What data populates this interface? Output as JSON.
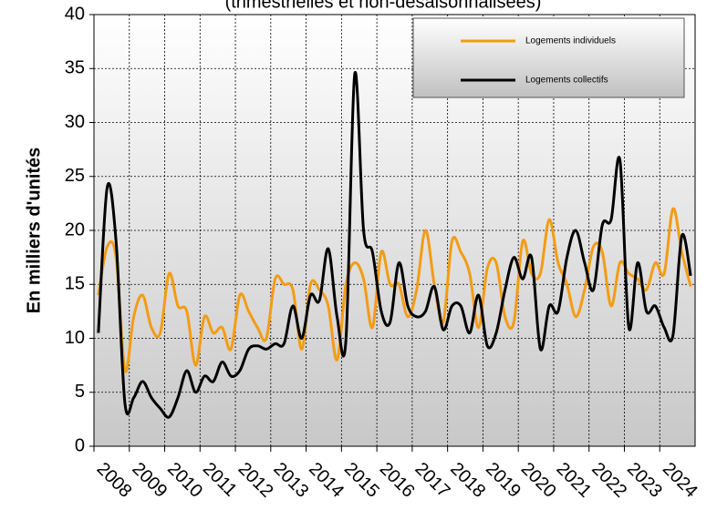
{
  "chart_data": {
    "type": "line",
    "subtitle": "(trimestrielles et non-désaisonnalisées)",
    "y_label": "En milliers d'unités",
    "x": [
      2008.125,
      2008.375,
      2008.625,
      2008.875,
      2009.125,
      2009.375,
      2009.625,
      2009.875,
      2010.125,
      2010.375,
      2010.625,
      2010.875,
      2011.125,
      2011.375,
      2011.625,
      2011.875,
      2012.125,
      2012.375,
      2012.625,
      2012.875,
      2013.125,
      2013.375,
      2013.625,
      2013.875,
      2014.125,
      2014.375,
      2014.625,
      2014.875,
      2015.125,
      2015.375,
      2015.625,
      2015.875,
      2016.125,
      2016.375,
      2016.625,
      2016.875,
      2017.125,
      2017.375,
      2017.625,
      2017.875,
      2018.125,
      2018.375,
      2018.625,
      2018.875,
      2019.125,
      2019.375,
      2019.625,
      2019.875,
      2020.125,
      2020.375,
      2020.625,
      2020.875,
      2021.125,
      2021.375,
      2021.625,
      2021.875,
      2022.125,
      2022.375,
      2022.625,
      2022.875,
      2023.125,
      2023.375,
      2023.625,
      2023.875,
      2024.125,
      2024.375,
      2024.625,
      2024.875
    ],
    "series": [
      {
        "name": "Logements individuels",
        "color": "#f39c12",
        "values": [
          14,
          18.5,
          17.5,
          7,
          12,
          14,
          11,
          10.5,
          16,
          13,
          12.5,
          7.5,
          12,
          10.5,
          11,
          9,
          14,
          12.5,
          11,
          10,
          15.5,
          15,
          14.5,
          9,
          15,
          14.5,
          13,
          8,
          15,
          17,
          15.5,
          11,
          18,
          15,
          15,
          12,
          14.5,
          20,
          15,
          11.5,
          19,
          18,
          16,
          11,
          16.5,
          17,
          12,
          11.5,
          19,
          16,
          16,
          21,
          17,
          15,
          12,
          14.5,
          18.5,
          18,
          13,
          17,
          16,
          15.5,
          14.5,
          17,
          16,
          22,
          18,
          14.8
        ]
      },
      {
        "name": "Logements collectifs",
        "color": "#000000",
        "values": [
          10.5,
          24,
          19,
          4,
          4.5,
          6,
          4.5,
          3.5,
          2.7,
          4.5,
          7,
          5,
          6.5,
          6,
          7.8,
          6.5,
          7,
          9,
          9.3,
          9,
          9.5,
          9.5,
          13,
          10,
          14,
          13.5,
          18.3,
          12,
          9.8,
          34.5,
          20,
          18,
          12.5,
          11.5,
          17,
          13,
          12,
          12.5,
          14.8,
          10.8,
          13,
          13,
          10.5,
          14,
          9.3,
          10.5,
          14.5,
          17.5,
          15.5,
          17.5,
          9,
          13,
          12.5,
          17.5,
          20,
          17,
          14.5,
          20.5,
          21,
          26.5,
          11,
          17,
          12.5,
          13,
          11,
          10.3,
          19.5,
          15.8
        ]
      }
    ],
    "xlim": [
      2008,
      2025
    ],
    "xticks": [
      2008,
      2009,
      2010,
      2011,
      2012,
      2013,
      2014,
      2015,
      2016,
      2017,
      2018,
      2019,
      2020,
      2021,
      2022,
      2023,
      2024
    ],
    "ylim": [
      0,
      40
    ],
    "yticks": [
      0,
      5,
      10,
      15,
      20,
      25,
      30,
      35,
      40
    ],
    "grid": true,
    "legend": "upper right"
  }
}
